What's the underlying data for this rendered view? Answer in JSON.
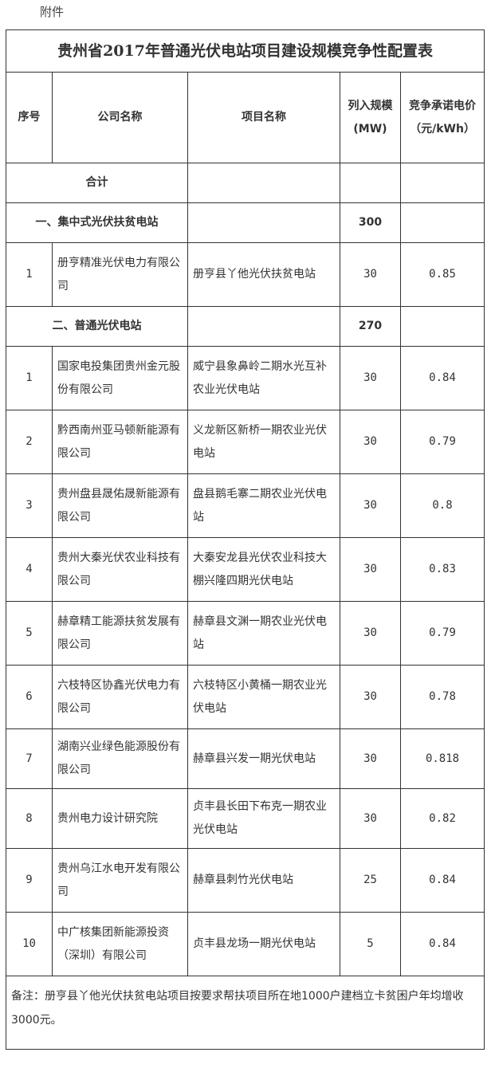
{
  "attachment_label": "附件",
  "title": "贵州省2017年普通光伏电站项目建设规模竞争性配置表",
  "headers": {
    "seq": "序号",
    "company": "公司名称",
    "project": "项目名称",
    "capacity": "列入规模(MW)",
    "price": "竞争承诺电价（元/kWh）"
  },
  "total_label": "合计",
  "section1": {
    "label": "一、集中式光伏扶贫电站",
    "capacity": "300"
  },
  "section1_rows": [
    {
      "seq": "1",
      "company": "册亨精准光伏电力有限公司",
      "project": "册亨县丫他光伏扶贫电站",
      "capacity": "30",
      "price": "0.85"
    }
  ],
  "section2": {
    "label": "二、普通光伏电站",
    "capacity": "270"
  },
  "section2_rows": [
    {
      "seq": "1",
      "company": "国家电投集团贵州金元股份有限公司",
      "project": "威宁县象鼻岭二期水光互补农业光伏电站",
      "capacity": "30",
      "price": "0.84"
    },
    {
      "seq": "2",
      "company": "黔西南州亚马顿新能源有限公司",
      "project": "义龙新区新桥一期农业光伏电站",
      "capacity": "30",
      "price": "0.79"
    },
    {
      "seq": "3",
      "company": "贵州盘县晟佑晟新能源有限公司",
      "project": "盘县鹅毛寨二期农业光伏电站",
      "capacity": "30",
      "price": "0.8"
    },
    {
      "seq": "4",
      "company": "贵州大秦光伏农业科技有限公司",
      "project": "大秦安龙县光伏农业科技大棚兴隆四期光伏电站",
      "capacity": "30",
      "price": "0.83"
    },
    {
      "seq": "5",
      "company": "赫章精工能源扶贫发展有限公司",
      "project": "赫章县文渊一期农业光伏电站",
      "capacity": "30",
      "price": "0.79"
    },
    {
      "seq": "6",
      "company": "六枝特区协鑫光伏电力有限公司",
      "project": "六枝特区小黄桶一期农业光伏电站",
      "capacity": "30",
      "price": "0.78"
    },
    {
      "seq": "7",
      "company": "湖南兴业绿色能源股份有限公司",
      "project": "赫章县兴发一期光伏电站",
      "capacity": "30",
      "price": "0.818"
    },
    {
      "seq": "8",
      "company": "贵州电力设计研究院",
      "project": "贞丰县长田下布克一期农业光伏电站",
      "capacity": "30",
      "price": "0.82"
    },
    {
      "seq": "9",
      "company": "贵州乌江水电开发有限公司",
      "project": "赫章县刺竹光伏电站",
      "capacity": "25",
      "price": "0.84"
    },
    {
      "seq": "10",
      "company": "中广核集团新能源投资（深圳）有限公司",
      "project": "贞丰县龙场一期光伏电站",
      "capacity": "5",
      "price": "0.84"
    }
  ],
  "note": "备注：册亨县丫他光伏扶贫电站项目按要求帮扶项目所在地1000户建档立卡贫困户年均增收3000元。"
}
